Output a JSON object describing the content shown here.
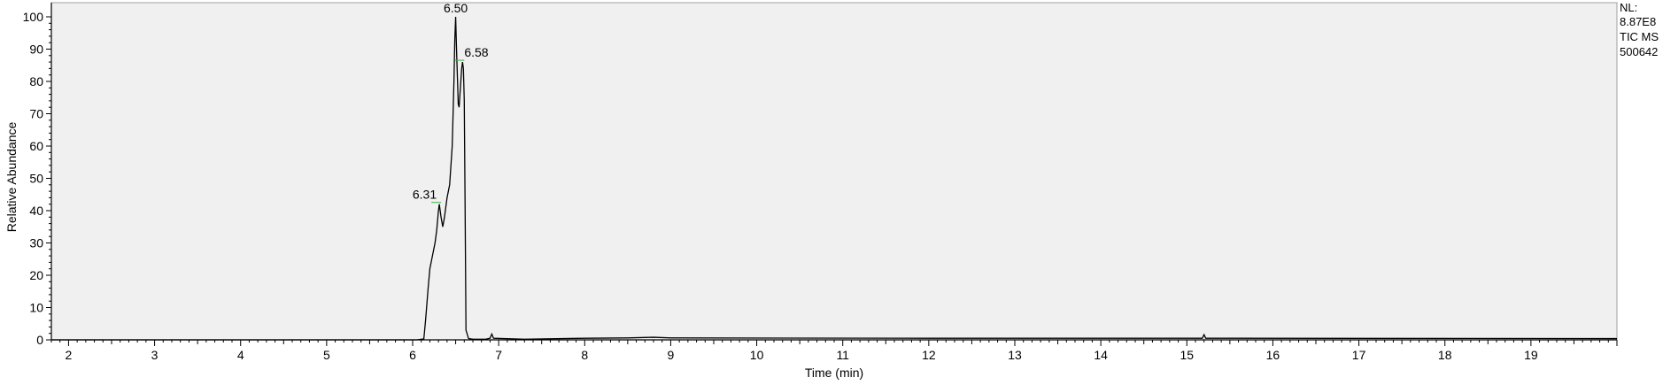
{
  "chart_data": {
    "type": "line",
    "xlabel": "Time (min)",
    "ylabel": "Relative Abundance",
    "xlim": [
      1.8,
      20.0
    ],
    "ylim": [
      0,
      100
    ],
    "x_ticks": [
      2,
      3,
      4,
      5,
      6,
      7,
      8,
      9,
      10,
      11,
      12,
      13,
      14,
      15,
      16,
      17,
      18,
      19
    ],
    "y_ticks": [
      0,
      10,
      20,
      30,
      40,
      50,
      60,
      70,
      80,
      90,
      100
    ],
    "grid": false,
    "colors": {
      "trace": "#000000",
      "background": "#f0f0f0",
      "marker": "#3cb043"
    },
    "series": [
      {
        "x": [
          1.8,
          5.5,
          6.05,
          6.13,
          6.15,
          6.18,
          6.2,
          6.23,
          6.26,
          6.28,
          6.3,
          6.31,
          6.33,
          6.35,
          6.37,
          6.4,
          6.43,
          6.46,
          6.48,
          6.49,
          6.5,
          6.51,
          6.53,
          6.54,
          6.55,
          6.57,
          6.58,
          6.59,
          6.6,
          6.61,
          6.62,
          6.65,
          6.7,
          6.85,
          6.9,
          6.92,
          6.94,
          7.3,
          8.0,
          8.5,
          8.8,
          9.0,
          12.0,
          15.0,
          15.18,
          15.2,
          15.22,
          15.5,
          20.0
        ],
        "y": [
          0,
          0,
          0,
          0.3,
          6,
          16,
          22,
          26,
          30,
          34,
          40,
          42,
          38,
          35,
          38,
          44,
          48,
          60,
          80,
          93,
          100,
          90,
          73,
          72,
          76,
          84,
          86,
          84,
          74,
          40,
          3,
          0.4,
          0.2,
          0.2,
          0.5,
          1.8,
          0.5,
          0.2,
          0.5,
          0.6,
          0.8,
          0.6,
          0.5,
          0.5,
          0.5,
          1.6,
          0.5,
          0.5,
          0.4
        ]
      }
    ],
    "peak_labels": [
      {
        "text": "6.50",
        "x": 6.5,
        "y": 100
      },
      {
        "text": "6.58",
        "x": 6.58,
        "y": 86
      },
      {
        "text": "6.31",
        "x": 6.31,
        "y": 42
      }
    ],
    "info": {
      "line1": "NL:",
      "line2": "8.87E8",
      "line3": "TIC  MS",
      "line4": "500642"
    }
  }
}
